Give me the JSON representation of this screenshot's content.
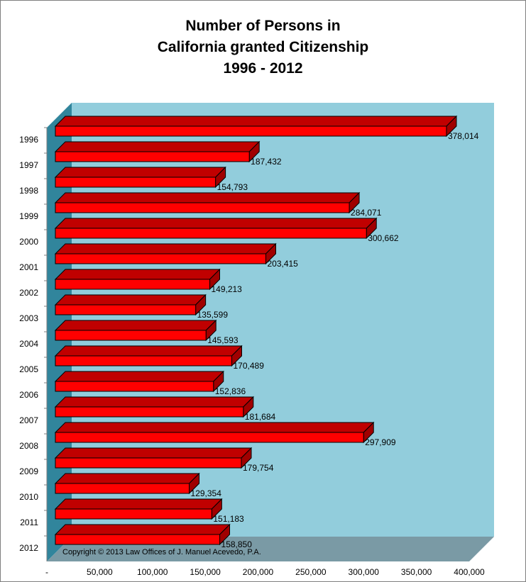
{
  "chart_data": {
    "type": "bar",
    "orientation": "horizontal",
    "three_d": true,
    "title_lines": [
      "Number of Persons in",
      "California granted Citizenship",
      "1996 - 2012"
    ],
    "categories": [
      "1996",
      "1997",
      "1998",
      "1999",
      "2000",
      "2001",
      "2002",
      "2003",
      "2004",
      "2005",
      "2006",
      "2007",
      "2008",
      "2009",
      "2010",
      "2011",
      "2012"
    ],
    "values": [
      378014,
      187432,
      154793,
      284071,
      300662,
      203415,
      149213,
      135599,
      145593,
      170489,
      152836,
      181684,
      297909,
      179754,
      129354,
      151183,
      158850
    ],
    "value_labels": [
      "378,014",
      "187,432",
      "154,793",
      "284,071",
      "300,662",
      "203,415",
      "149,213",
      "135,599",
      "145,593",
      "170,489",
      "152,836",
      "181,684",
      "297,909",
      "179,754",
      "129,354",
      "151,183",
      "158,850"
    ],
    "x_ticks": [
      0,
      50000,
      100000,
      150000,
      200000,
      250000,
      300000,
      350000,
      400000
    ],
    "x_tick_labels": [
      "-",
      "50,000",
      "100,000",
      "150,000",
      "200,000",
      "250,000",
      "300,000",
      "350,000",
      "400,000"
    ],
    "xlim": [
      0,
      400000
    ],
    "annotation": "Copyright © 2013 Law Offices of J. Manuel Acevedo, P.A.",
    "grid": false,
    "legend": "none",
    "colors": {
      "bar_front": "#ff0000",
      "bar_top": "#c00000",
      "bar_side": "#a00000",
      "back_wall": "#92cddc",
      "side_wall": "#31859c",
      "floor": "#7a9aa5"
    }
  }
}
